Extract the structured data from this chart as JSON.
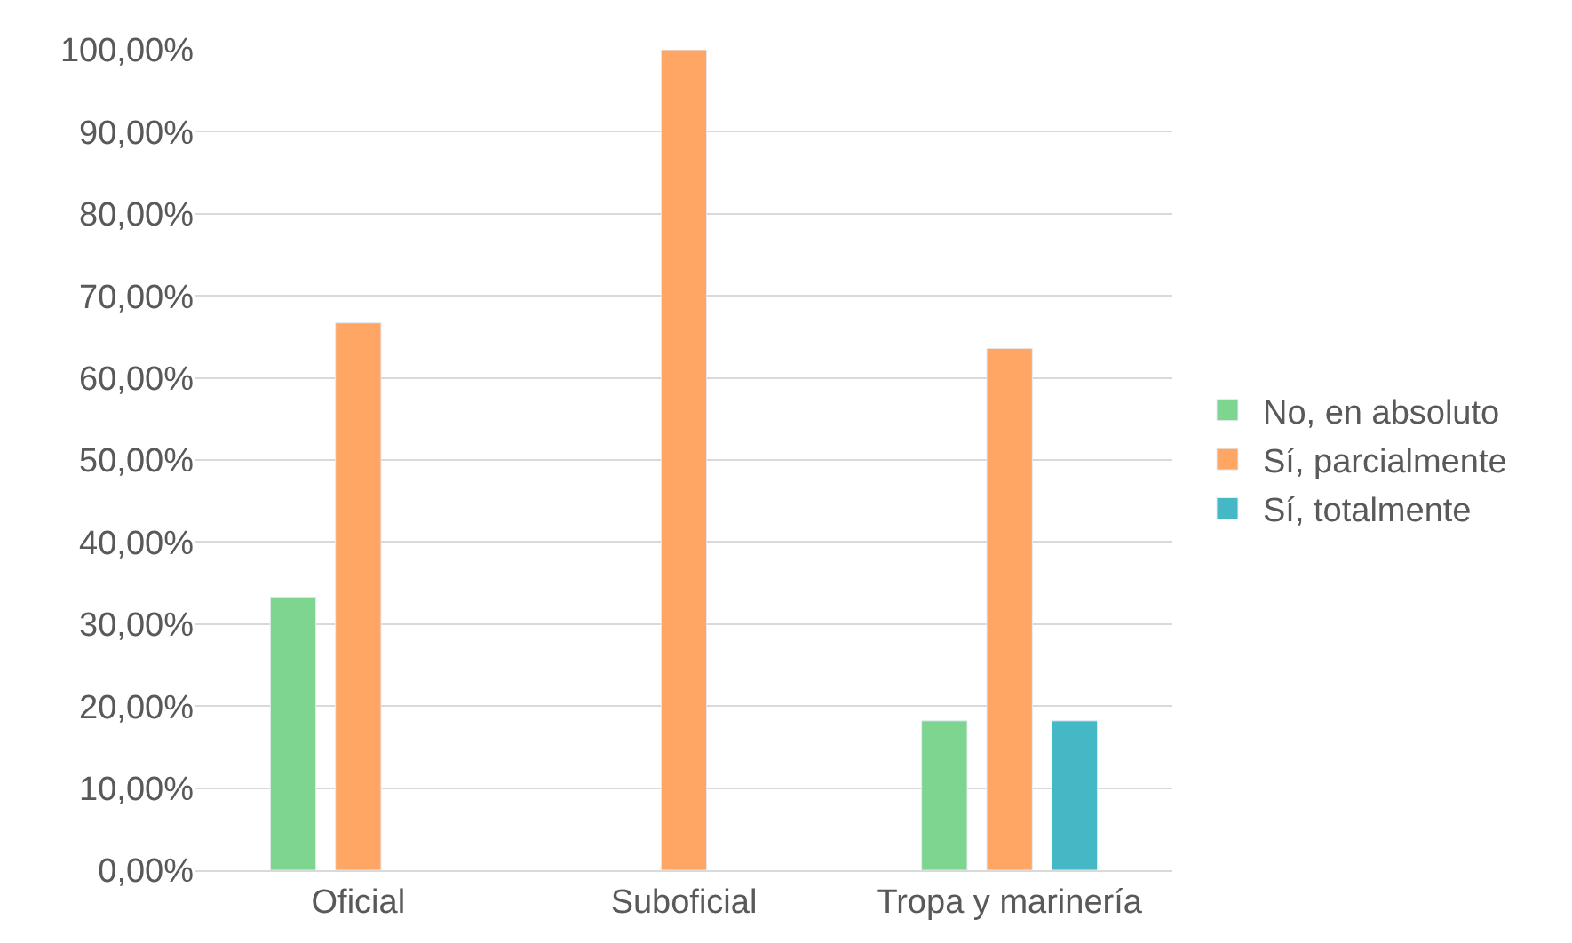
{
  "chart_data": {
    "type": "bar",
    "categories": [
      "Oficial",
      "Suboficial",
      "Tropa y marinería"
    ],
    "series": [
      {
        "name": "No, en absoluto",
        "color": "#7dd58f",
        "values": [
          33.3,
          null,
          18.2
        ]
      },
      {
        "name": "Sí, parcialmente",
        "color": "#ffa665",
        "values": [
          66.7,
          100,
          63.6
        ]
      },
      {
        "name": "Sí, totalmente",
        "color": "#45b8c6",
        "values": [
          null,
          null,
          18.2
        ]
      }
    ],
    "ylim": [
      0,
      100
    ],
    "yticks": [
      {
        "value": 0,
        "label": "0,00%"
      },
      {
        "value": 10,
        "label": "10,00%"
      },
      {
        "value": 20,
        "label": "20,00%"
      },
      {
        "value": 30,
        "label": "30,00%"
      },
      {
        "value": 40,
        "label": "40,00%"
      },
      {
        "value": 50,
        "label": "50,00%"
      },
      {
        "value": 60,
        "label": "60,00%"
      },
      {
        "value": 70,
        "label": "70,00%"
      },
      {
        "value": 80,
        "label": "80,00%"
      },
      {
        "value": 90,
        "label": "90,00%"
      },
      {
        "value": 100,
        "label": "100,00%"
      }
    ],
    "grid": "y",
    "legend": "right"
  }
}
